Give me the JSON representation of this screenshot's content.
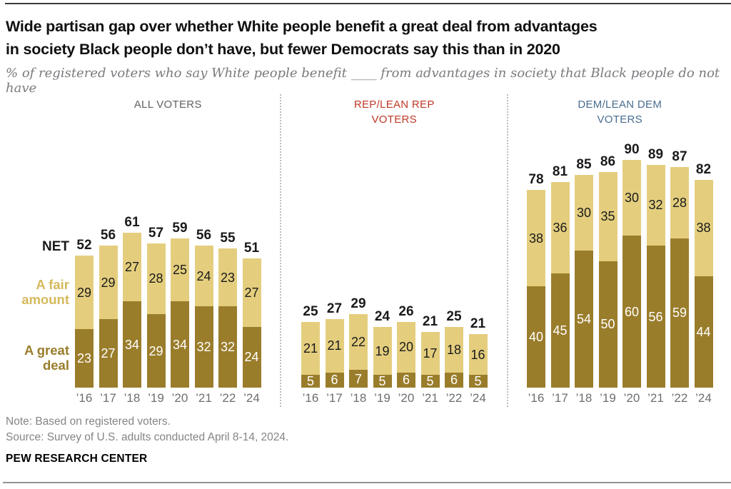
{
  "header": {
    "title_line1": "Wide partisan gap over whether White people benefit a great deal from advantages",
    "title_line2": "in society Black people don’t have, but fewer Democrats say this than in 2020",
    "subtitle": "% of registered voters who say White people benefit ____ from advantages in society that Black people do not have"
  },
  "legend": {
    "net": "NET",
    "fair_line1": "A fair",
    "fair_line2": "amount",
    "deal_line1": "A great",
    "deal_line2": "deal"
  },
  "chart_data": {
    "type": "bar",
    "stacked": true,
    "unit": "%",
    "ylim": [
      0,
      100
    ],
    "grid": false,
    "categories": [
      "’16",
      "’17",
      "’18",
      "’19",
      "’20",
      "’21",
      "’22",
      "’24"
    ],
    "panels": [
      {
        "title_lines": [
          "ALL VOTERS"
        ],
        "title_color": "#626265",
        "net_values": [
          52,
          56,
          61,
          57,
          59,
          56,
          55,
          51
        ],
        "series": [
          {
            "name": "A great deal",
            "color": "#9A7D2B",
            "value_text_color": "#ffffff",
            "values": [
              23,
              27,
              34,
              29,
              34,
              32,
              32,
              24
            ]
          },
          {
            "name": "A fair amount",
            "color": "#E4CE7E",
            "value_text_color": "#1a1a1a",
            "values": [
              29,
              29,
              27,
              28,
              25,
              24,
              23,
              27
            ]
          }
        ]
      },
      {
        "title_lines": [
          "REP/LEAN REP",
          "VOTERS"
        ],
        "title_color": "#BF3927",
        "net_values": [
          25,
          27,
          29,
          24,
          26,
          21,
          25,
          21
        ],
        "series": [
          {
            "name": "A great deal",
            "color": "#9A7D2B",
            "value_text_color": "#ffffff",
            "values": [
              5,
              6,
              7,
              5,
              6,
              5,
              6,
              5
            ]
          },
          {
            "name": "A fair amount",
            "color": "#E4CE7E",
            "value_text_color": "#1a1a1a",
            "values": [
              21,
              21,
              22,
              19,
              20,
              17,
              18,
              16
            ]
          }
        ]
      },
      {
        "title_lines": [
          "DEM/LEAN DEM",
          "VOTERS"
        ],
        "title_color": "#4A6D91",
        "net_values": [
          78,
          81,
          85,
          86,
          90,
          89,
          87,
          82
        ],
        "series": [
          {
            "name": "A great deal",
            "color": "#9A7D2B",
            "value_text_color": "#ffffff",
            "values": [
              40,
              45,
              54,
              50,
              60,
              56,
              59,
              44
            ]
          },
          {
            "name": "A fair amount",
            "color": "#E4CE7E",
            "value_text_color": "#1a1a1a",
            "values": [
              38,
              36,
              30,
              35,
              30,
              32,
              28,
              38
            ]
          }
        ]
      }
    ]
  },
  "footer": {
    "note": "Note: Based on registered voters.",
    "source": "Source: Survey of U.S. adults conducted April 8-14, 2024.",
    "brand": "PEW RESEARCH CENTER"
  }
}
